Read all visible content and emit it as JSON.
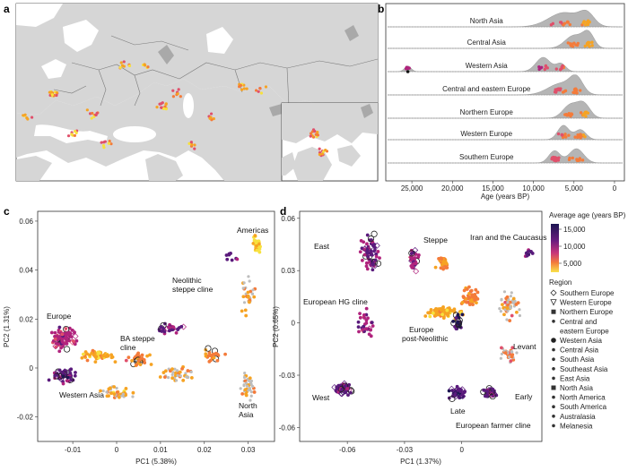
{
  "panel_letters": {
    "a": "a",
    "b": "b",
    "c": "c",
    "d": "d"
  },
  "palette": {
    "land": "#d6d6d6",
    "sea": "#ffffff",
    "border": "#7a7a7a",
    "ridge": "#a9a9a9",
    "dark": "#1c1652",
    "mid": "#b0237d",
    "light": "#f6a323",
    "pale": "#f7e13e",
    "grey": "#bdbdbd"
  },
  "chart_data": [
    {
      "id": "b",
      "type": "ridgeline",
      "categories": [
        "North Asia",
        "Central Asia",
        "Western Asia",
        "Central and eastern Europe",
        "Northern Europe",
        "Western Europe",
        "Southern Europe"
      ],
      "xlabel": "Age (years BP)",
      "xticks": [
        25000,
        20000,
        15000,
        10000,
        5000,
        0
      ],
      "xtick_labels": [
        "25,000",
        "20,000",
        "15,000",
        "10,000",
        "5,000",
        "0"
      ],
      "xlim": [
        28000,
        -1000
      ],
      "reversed_x": true
    },
    {
      "id": "c",
      "type": "scatter",
      "xlabel": "PC1 (5.38%)",
      "ylabel": "PC2 (1.31%)",
      "xticks": [
        -0.01,
        0,
        0.01,
        0.02,
        0.03
      ],
      "xtick_labels": [
        "-0.01",
        "0",
        "0.01",
        "0.02",
        "0.03"
      ],
      "yticks": [
        -0.02,
        0,
        0.02,
        0.04,
        0.06
      ],
      "ytick_labels": [
        "-0.02",
        "0",
        "0.02",
        "0.04",
        "0.06"
      ],
      "xlim": [
        -0.018,
        0.036
      ],
      "ylim": [
        -0.03,
        0.064
      ],
      "annotations": [
        "Americas",
        "Europe",
        "Neolithic steppe cline",
        "BA steppe cline",
        "Western Asia",
        "North Asia"
      ]
    },
    {
      "id": "d",
      "type": "scatter",
      "xlabel": "PC1 (1.37%)",
      "ylabel": "PC2 (0.65%)",
      "xticks": [
        -0.06,
        -0.03,
        0
      ],
      "xtick_labels": [
        "-0.06",
        "-0.03",
        "0"
      ],
      "yticks": [
        -0.06,
        -0.03,
        0,
        0.03,
        0.06
      ],
      "ytick_labels": [
        "-0.06",
        "-0.03",
        "0",
        "0.03",
        "0.06"
      ],
      "xlim": [
        -0.085,
        0.042
      ],
      "ylim": [
        -0.068,
        0.064
      ],
      "annotations": [
        "East",
        "Steppe",
        "Iran and the Caucasus",
        "European HG cline",
        "Europe post-Neolithic",
        "Levant",
        "West",
        "Early",
        "Late",
        "European farmer cline"
      ]
    }
  ],
  "colorbar": {
    "title": "Average age (years BP)",
    "ticks": [
      "15,000",
      "10,000",
      "5,000"
    ]
  },
  "legend": {
    "title": "Region",
    "items": [
      {
        "label": "Southern Europe",
        "shape": "diamond"
      },
      {
        "label": "Western Europe",
        "shape": "triangle-down"
      },
      {
        "label": "Northern Europe",
        "shape": "square-filled"
      },
      {
        "label": "Central and",
        "shape": "dot"
      },
      {
        "label": "eastern Europe",
        "shape": "none"
      },
      {
        "label": "Western Asia",
        "shape": "dot-big"
      },
      {
        "label": "Central Asia",
        "shape": "dot"
      },
      {
        "label": "South Asia",
        "shape": "dot"
      },
      {
        "label": "Southeast Asia",
        "shape": "dot"
      },
      {
        "label": "East Asia",
        "shape": "dot"
      },
      {
        "label": "North Asia",
        "shape": "square-filled"
      },
      {
        "label": "North America",
        "shape": "dot"
      },
      {
        "label": "South America",
        "shape": "dot"
      },
      {
        "label": "Australasia",
        "shape": "dot"
      },
      {
        "label": "Melanesia",
        "shape": "dot"
      }
    ]
  }
}
